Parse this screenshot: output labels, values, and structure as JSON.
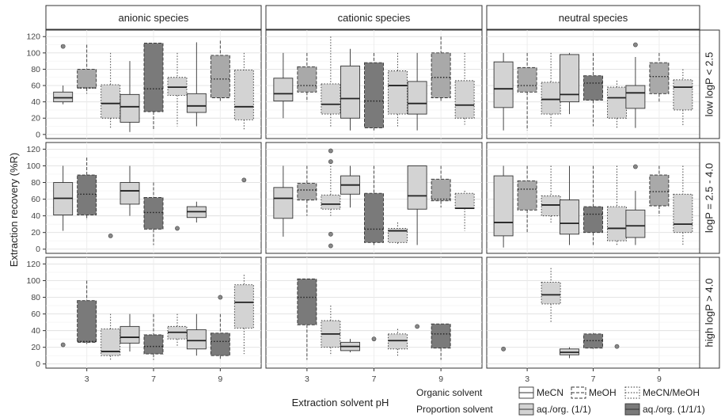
{
  "chart_data": {
    "type": "boxplot",
    "title": "",
    "xlabel": "Extraction solvent pH",
    "ylabel": "Extraction recovery (%R)",
    "ylim": [
      -5,
      128
    ],
    "yticks": [
      0,
      20,
      40,
      60,
      80,
      100,
      120
    ],
    "x_categories": [
      "3",
      "7",
      "9"
    ],
    "columns": [
      "anionic species",
      "cationic species",
      "neutral species"
    ],
    "rows": [
      "low logP < 2.5",
      "logP = 2.5 - 4.0",
      "high logP > 4.0"
    ],
    "legend": {
      "organic_title": "Organic solvent",
      "organic_items": [
        {
          "label": "MeCN",
          "line": "solid"
        },
        {
          "label": "MeOH",
          "line": "dashed"
        },
        {
          "label": "MeCN/MeOH",
          "line": "dotted"
        }
      ],
      "proportion_title": "Proportion solvent",
      "proportion_items": [
        {
          "label": "aq./org. (1/1)",
          "fill": "#d3d3d3"
        },
        {
          "label": "aq./org. (1/1/1)",
          "fill": "#7a7a7a"
        }
      ]
    },
    "series": [
      {
        "name": "MeCN",
        "proportion": "aq./org. (1/1)",
        "fill": "#d3d3d3",
        "line": "solid"
      },
      {
        "name": "MeOH",
        "proportion": "aq./org. (1/1/1)",
        "fill": "#a9a9a9",
        "line": "dashed"
      },
      {
        "name": "MeCN/MeOH",
        "proportion": "aq./org. (1/1)",
        "fill": "#d3d3d3",
        "line": "dotted"
      },
      {
        "name": "MeOH",
        "proportion": "aq./org. (1/1/1)",
        "fill": "#7a7a7a",
        "line": "dashed"
      }
    ],
    "boxes": [
      {
        "row": 0,
        "col": 0,
        "ph": "3",
        "series": 0,
        "min": 37,
        "q1": 40,
        "median": 45,
        "q3": 52,
        "max": 60,
        "mean": null,
        "outliers": [
          108
        ]
      },
      {
        "row": 0,
        "col": 0,
        "ph": "3",
        "series": 1,
        "min": 50,
        "q1": 57,
        "median": 57,
        "q3": 80,
        "max": 110,
        "mean": 57,
        "outliers": []
      },
      {
        "row": 0,
        "col": 0,
        "ph": "3",
        "series": 2,
        "min": 8,
        "q1": 20,
        "median": 38,
        "q3": 61,
        "max": 100,
        "mean": null,
        "outliers": []
      },
      {
        "row": 0,
        "col": 0,
        "ph": "7",
        "series": 0,
        "min": 3,
        "q1": 15,
        "median": 34,
        "q3": 49,
        "max": 90,
        "mean": null,
        "outliers": []
      },
      {
        "row": 0,
        "col": 0,
        "ph": "7",
        "series": 3,
        "min": 5,
        "q1": 28,
        "median": 56,
        "q3": 112,
        "max": 112,
        "mean": 56,
        "outliers": []
      },
      {
        "row": 0,
        "col": 0,
        "ph": "7",
        "series": 2,
        "min": 10,
        "q1": 48,
        "median": 58,
        "q3": 70,
        "max": 100,
        "mean": null,
        "outliers": []
      },
      {
        "row": 0,
        "col": 0,
        "ph": "9",
        "series": 0,
        "min": 10,
        "q1": 27,
        "median": 35,
        "q3": 50,
        "max": 113,
        "mean": null,
        "outliers": []
      },
      {
        "row": 0,
        "col": 0,
        "ph": "9",
        "series": 1,
        "min": 40,
        "q1": 45,
        "median": 68,
        "q3": 97,
        "max": 115,
        "mean": 68,
        "outliers": []
      },
      {
        "row": 0,
        "col": 0,
        "ph": "9",
        "series": 2,
        "min": 5,
        "q1": 18,
        "median": 34,
        "q3": 79,
        "max": 100,
        "mean": null,
        "outliers": []
      },
      {
        "row": 0,
        "col": 1,
        "ph": "3",
        "series": 0,
        "min": 20,
        "q1": 41,
        "median": 50,
        "q3": 69,
        "max": 100,
        "mean": null,
        "outliers": []
      },
      {
        "row": 0,
        "col": 1,
        "ph": "3",
        "series": 1,
        "min": 40,
        "q1": 52,
        "median": 60,
        "q3": 83,
        "max": 100,
        "mean": 60,
        "outliers": []
      },
      {
        "row": 0,
        "col": 1,
        "ph": "3",
        "series": 2,
        "min": 8,
        "q1": 25,
        "median": 37,
        "q3": 62,
        "max": 120,
        "mean": null,
        "outliers": []
      },
      {
        "row": 0,
        "col": 1,
        "ph": "7",
        "series": 0,
        "min": 5,
        "q1": 20,
        "median": 44,
        "q3": 84,
        "max": 105,
        "mean": null,
        "outliers": []
      },
      {
        "row": 0,
        "col": 1,
        "ph": "7",
        "series": 3,
        "min": 5,
        "q1": 8,
        "median": 41,
        "q3": 88,
        "max": 100,
        "mean": 41,
        "outliers": []
      },
      {
        "row": 0,
        "col": 1,
        "ph": "7",
        "series": 2,
        "min": 10,
        "q1": 25,
        "median": 60,
        "q3": 78,
        "max": 100,
        "mean": null,
        "outliers": []
      },
      {
        "row": 0,
        "col": 1,
        "ph": "9",
        "series": 0,
        "min": 5,
        "q1": 25,
        "median": 38,
        "q3": 65,
        "max": 100,
        "mean": null,
        "outliers": []
      },
      {
        "row": 0,
        "col": 1,
        "ph": "9",
        "series": 1,
        "min": 40,
        "q1": 45,
        "median": 70,
        "q3": 100,
        "max": 120,
        "mean": 70,
        "outliers": []
      },
      {
        "row": 0,
        "col": 1,
        "ph": "9",
        "series": 2,
        "min": 12,
        "q1": 20,
        "median": 36,
        "q3": 66,
        "max": 100,
        "mean": null,
        "outliers": []
      },
      {
        "row": 0,
        "col": 2,
        "ph": "3",
        "series": 0,
        "min": 5,
        "q1": 33,
        "median": 56,
        "q3": 89,
        "max": 100,
        "mean": null,
        "outliers": []
      },
      {
        "row": 0,
        "col": 2,
        "ph": "3",
        "series": 1,
        "min": 5,
        "q1": 52,
        "median": 60,
        "q3": 82,
        "max": 100,
        "mean": 60,
        "outliers": []
      },
      {
        "row": 0,
        "col": 2,
        "ph": "3",
        "series": 2,
        "min": 10,
        "q1": 25,
        "median": 43,
        "q3": 64,
        "max": 100,
        "mean": null,
        "outliers": []
      },
      {
        "row": 0,
        "col": 2,
        "ph": "7",
        "series": 0,
        "min": 25,
        "q1": 40,
        "median": 49,
        "q3": 98,
        "max": 100,
        "mean": null,
        "outliers": []
      },
      {
        "row": 0,
        "col": 2,
        "ph": "7",
        "series": 3,
        "min": 10,
        "q1": 42,
        "median": 63,
        "q3": 72,
        "max": 100,
        "mean": 63,
        "outliers": []
      },
      {
        "row": 0,
        "col": 2,
        "ph": "7",
        "series": 2,
        "min": 8,
        "q1": 20,
        "median": 45,
        "q3": 58,
        "max": 66,
        "mean": null,
        "outliers": []
      },
      {
        "row": 0,
        "col": 2,
        "ph": "9",
        "series": 0,
        "min": 8,
        "q1": 32,
        "median": 51,
        "q3": 60,
        "max": 95,
        "mean": null,
        "outliers": [
          110
        ]
      },
      {
        "row": 0,
        "col": 2,
        "ph": "9",
        "series": 1,
        "min": 40,
        "q1": 50,
        "median": 71,
        "q3": 88,
        "max": 100,
        "mean": 71,
        "outliers": []
      },
      {
        "row": 0,
        "col": 2,
        "ph": "9",
        "series": 2,
        "min": 10,
        "q1": 30,
        "median": 58,
        "q3": 67,
        "max": 80,
        "mean": null,
        "outliers": []
      },
      {
        "row": 1,
        "col": 0,
        "ph": "3",
        "series": 0,
        "min": 22,
        "q1": 41,
        "median": 61,
        "q3": 80,
        "max": 100,
        "mean": null,
        "outliers": []
      },
      {
        "row": 1,
        "col": 0,
        "ph": "3",
        "series": 3,
        "min": 35,
        "q1": 41,
        "median": 66,
        "q3": 89,
        "max": 110,
        "mean": 66,
        "outliers": []
      },
      {
        "row": 1,
        "col": 0,
        "ph": "3",
        "series": 2,
        "min": null,
        "q1": null,
        "median": null,
        "q3": null,
        "max": null,
        "mean": null,
        "outliers": [
          16
        ]
      },
      {
        "row": 1,
        "col": 0,
        "ph": "7",
        "series": 0,
        "min": 40,
        "q1": 54,
        "median": 70,
        "q3": 80,
        "max": 100,
        "mean": null,
        "outliers": []
      },
      {
        "row": 1,
        "col": 0,
        "ph": "7",
        "series": 3,
        "min": 5,
        "q1": 24,
        "median": 44,
        "q3": 62,
        "max": 80,
        "mean": 44,
        "outliers": []
      },
      {
        "row": 1,
        "col": 0,
        "ph": "7",
        "series": 2,
        "min": null,
        "q1": null,
        "median": null,
        "q3": null,
        "max": null,
        "mean": null,
        "outliers": [
          25
        ]
      },
      {
        "row": 1,
        "col": 0,
        "ph": "9",
        "series": 0,
        "min": 32,
        "q1": 38,
        "median": 45,
        "q3": 51,
        "max": 57,
        "mean": null,
        "outliers": []
      },
      {
        "row": 1,
        "col": 0,
        "ph": "9",
        "series": 2,
        "min": null,
        "q1": null,
        "median": null,
        "q3": null,
        "max": null,
        "mean": null,
        "outliers": [
          83
        ]
      },
      {
        "row": 1,
        "col": 1,
        "ph": "3",
        "series": 0,
        "min": 15,
        "q1": 37,
        "median": 61,
        "q3": 74,
        "max": 100,
        "mean": null,
        "outliers": []
      },
      {
        "row": 1,
        "col": 1,
        "ph": "3",
        "series": 1,
        "min": 40,
        "q1": 59,
        "median": 71,
        "q3": 79,
        "max": 100,
        "mean": 71,
        "outliers": []
      },
      {
        "row": 1,
        "col": 1,
        "ph": "3",
        "series": 2,
        "min": 40,
        "q1": 48,
        "median": 54,
        "q3": 65,
        "max": 100,
        "mean": null,
        "outliers": [
          118,
          105,
          18,
          4
        ]
      },
      {
        "row": 1,
        "col": 1,
        "ph": "7",
        "series": 0,
        "min": 50,
        "q1": 66,
        "median": 77,
        "q3": 88,
        "max": 100,
        "mean": null,
        "outliers": []
      },
      {
        "row": 1,
        "col": 1,
        "ph": "7",
        "series": 3,
        "min": 5,
        "q1": 8,
        "median": 24,
        "q3": 67,
        "max": 100,
        "mean": 24,
        "outliers": []
      },
      {
        "row": 1,
        "col": 1,
        "ph": "7",
        "series": 2,
        "min": 5,
        "q1": 8,
        "median": 22,
        "q3": 25,
        "max": 32,
        "mean": null,
        "outliers": []
      },
      {
        "row": 1,
        "col": 1,
        "ph": "9",
        "series": 0,
        "min": 5,
        "q1": 48,
        "median": 64,
        "q3": 100,
        "max": 100,
        "mean": null,
        "outliers": []
      },
      {
        "row": 1,
        "col": 1,
        "ph": "9",
        "series": 1,
        "min": 50,
        "q1": 58,
        "median": 60,
        "q3": 84,
        "max": 100,
        "mean": 60,
        "outliers": []
      },
      {
        "row": 1,
        "col": 1,
        "ph": "9",
        "series": 2,
        "min": 22,
        "q1": 49,
        "median": 49,
        "q3": 67,
        "max": 70,
        "mean": null,
        "outliers": []
      },
      {
        "row": 1,
        "col": 2,
        "ph": "3",
        "series": 0,
        "min": 2,
        "q1": 16,
        "median": 32,
        "q3": 88,
        "max": 100,
        "mean": null,
        "outliers": []
      },
      {
        "row": 1,
        "col": 2,
        "ph": "3",
        "series": 1,
        "min": 20,
        "q1": 47,
        "median": 72,
        "q3": 82,
        "max": 100,
        "mean": 72,
        "outliers": []
      },
      {
        "row": 1,
        "col": 2,
        "ph": "3",
        "series": 2,
        "min": 30,
        "q1": 40,
        "median": 53,
        "q3": 64,
        "max": 100,
        "mean": null,
        "outliers": []
      },
      {
        "row": 1,
        "col": 2,
        "ph": "7",
        "series": 0,
        "min": 5,
        "q1": 18,
        "median": 31,
        "q3": 59,
        "max": 100,
        "mean": null,
        "outliers": []
      },
      {
        "row": 1,
        "col": 2,
        "ph": "7",
        "series": 3,
        "min": 5,
        "q1": 20,
        "median": 42,
        "q3": 51,
        "max": 100,
        "mean": 42,
        "outliers": []
      },
      {
        "row": 1,
        "col": 2,
        "ph": "7",
        "series": 2,
        "min": 5,
        "q1": 10,
        "median": 25,
        "q3": 51,
        "max": 100,
        "mean": null,
        "outliers": []
      },
      {
        "row": 1,
        "col": 2,
        "ph": "9",
        "series": 0,
        "min": 5,
        "q1": 14,
        "median": 28,
        "q3": 47,
        "max": 70,
        "mean": null,
        "outliers": [
          99
        ]
      },
      {
        "row": 1,
        "col": 2,
        "ph": "9",
        "series": 1,
        "min": 40,
        "q1": 52,
        "median": 69,
        "q3": 89,
        "max": 100,
        "mean": 69,
        "outliers": []
      },
      {
        "row": 1,
        "col": 2,
        "ph": "9",
        "series": 2,
        "min": 5,
        "q1": 20,
        "median": 30,
        "q3": 66,
        "max": 100,
        "mean": null,
        "outliers": []
      },
      {
        "row": 2,
        "col": 0,
        "ph": "3",
        "series": 0,
        "min": null,
        "q1": null,
        "median": null,
        "q3": null,
        "max": null,
        "mean": null,
        "outliers": [
          23
        ]
      },
      {
        "row": 2,
        "col": 0,
        "ph": "3",
        "series": 3,
        "min": 24,
        "q1": 26,
        "median": 27,
        "q3": 76,
        "max": 100,
        "mean": 27,
        "outliers": []
      },
      {
        "row": 2,
        "col": 0,
        "ph": "3",
        "series": 2,
        "min": 4,
        "q1": 10,
        "median": 15,
        "q3": 42,
        "max": 60,
        "mean": null,
        "outliers": []
      },
      {
        "row": 2,
        "col": 0,
        "ph": "7",
        "series": 0,
        "min": 15,
        "q1": 25,
        "median": 32,
        "q3": 45,
        "max": 60,
        "mean": null,
        "outliers": []
      },
      {
        "row": 2,
        "col": 0,
        "ph": "7",
        "series": 3,
        "min": 5,
        "q1": 12,
        "median": 21,
        "q3": 35,
        "max": 60,
        "mean": 21,
        "outliers": []
      },
      {
        "row": 2,
        "col": 0,
        "ph": "7",
        "series": 2,
        "min": 20,
        "q1": 30,
        "median": 38,
        "q3": 45,
        "max": 60,
        "mean": null,
        "outliers": []
      },
      {
        "row": 2,
        "col": 0,
        "ph": "9",
        "series": 0,
        "min": 10,
        "q1": 18,
        "median": 28,
        "q3": 41,
        "max": 60,
        "mean": null,
        "outliers": []
      },
      {
        "row": 2,
        "col": 0,
        "ph": "9",
        "series": 3,
        "min": 5,
        "q1": 10,
        "median": 27,
        "q3": 37,
        "max": 60,
        "mean": 27,
        "outliers": [
          80
        ]
      },
      {
        "row": 2,
        "col": 0,
        "ph": "9",
        "series": 2,
        "min": 12,
        "q1": 43,
        "median": 74,
        "q3": 95,
        "max": 107,
        "mean": null,
        "outliers": []
      },
      {
        "row": 2,
        "col": 1,
        "ph": "3",
        "series": 3,
        "min": 5,
        "q1": 47,
        "median": 80,
        "q3": 102,
        "max": 102,
        "mean": 80,
        "outliers": []
      },
      {
        "row": 2,
        "col": 1,
        "ph": "3",
        "series": 2,
        "min": 10,
        "q1": 20,
        "median": 36,
        "q3": 52,
        "max": 70,
        "mean": null,
        "outliers": []
      },
      {
        "row": 2,
        "col": 1,
        "ph": "7",
        "series": 0,
        "min": 14,
        "q1": 16,
        "median": 21,
        "q3": 26,
        "max": 30,
        "mean": null,
        "outliers": []
      },
      {
        "row": 2,
        "col": 1,
        "ph": "7",
        "series": 1,
        "min": null,
        "q1": null,
        "median": null,
        "q3": null,
        "max": null,
        "mean": null,
        "outliers": [
          30
        ]
      },
      {
        "row": 2,
        "col": 1,
        "ph": "7",
        "series": 2,
        "min": 10,
        "q1": 18,
        "median": 28,
        "q3": 36,
        "max": 42,
        "mean": null,
        "outliers": []
      },
      {
        "row": 2,
        "col": 1,
        "ph": "9",
        "series": 0,
        "min": null,
        "q1": null,
        "median": null,
        "q3": null,
        "max": null,
        "mean": null,
        "outliers": [
          45
        ]
      },
      {
        "row": 2,
        "col": 1,
        "ph": "9",
        "series": 3,
        "min": 5,
        "q1": 19,
        "median": 36,
        "q3": 48,
        "max": 48,
        "mean": 36,
        "outliers": []
      },
      {
        "row": 2,
        "col": 2,
        "ph": "3",
        "series": 0,
        "min": null,
        "q1": null,
        "median": null,
        "q3": null,
        "max": null,
        "mean": null,
        "outliers": [
          18
        ]
      },
      {
        "row": 2,
        "col": 2,
        "ph": "3",
        "series": 2,
        "min": 50,
        "q1": 72,
        "median": 83,
        "q3": 98,
        "max": 115,
        "mean": null,
        "outliers": []
      },
      {
        "row": 2,
        "col": 2,
        "ph": "7",
        "series": 0,
        "min": 7,
        "q1": 11,
        "median": 14,
        "q3": 18,
        "max": 20,
        "mean": null,
        "outliers": []
      },
      {
        "row": 2,
        "col": 2,
        "ph": "7",
        "series": 3,
        "min": 18,
        "q1": 19,
        "median": 28,
        "q3": 36,
        "max": 37,
        "mean": 28,
        "outliers": []
      },
      {
        "row": 2,
        "col": 2,
        "ph": "7",
        "series": 2,
        "min": null,
        "q1": null,
        "median": null,
        "q3": null,
        "max": null,
        "mean": null,
        "outliers": [
          21
        ]
      }
    ]
  }
}
